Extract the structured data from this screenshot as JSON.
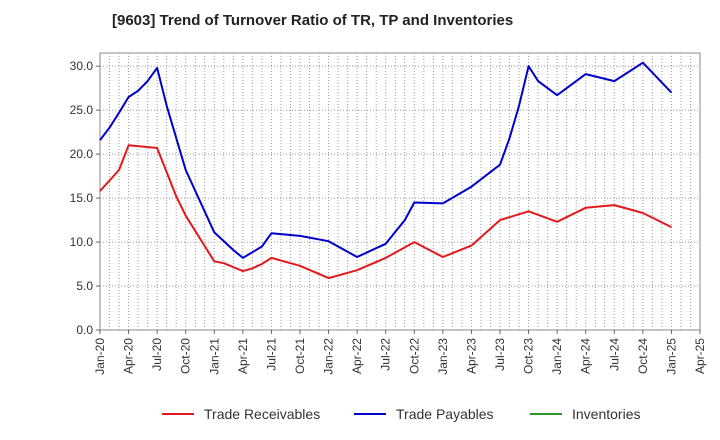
{
  "chart_data": {
    "type": "line",
    "title": "[9603]  Trend of Turnover Ratio of TR, TP and Inventories",
    "xlabel": "",
    "ylabel": "",
    "ylim": [
      0,
      31.5
    ],
    "yticks": [
      "0.0",
      "5.0",
      "10.0",
      "15.0",
      "20.0",
      "25.0",
      "30.0"
    ],
    "xticks": [
      "Jan-20",
      "Apr-20",
      "Jul-20",
      "Oct-20",
      "Jan-21",
      "Apr-21",
      "Jul-21",
      "Oct-21",
      "Jan-22",
      "Apr-22",
      "Jul-22",
      "Oct-22",
      "Jan-23",
      "Apr-23",
      "Jul-23",
      "Oct-23",
      "Jan-24",
      "Apr-24",
      "Jul-24",
      "Oct-24",
      "Jan-25",
      "Apr-25"
    ],
    "x_months": 63,
    "grid": true,
    "legend": "bottom",
    "series": [
      {
        "name": "Trade Receivables",
        "color": "#e31a1c",
        "points": [
          [
            0,
            15.8
          ],
          [
            2,
            18.2
          ],
          [
            3,
            21.0
          ],
          [
            6,
            20.7
          ],
          [
            8,
            15.2
          ],
          [
            9,
            13.0
          ],
          [
            12,
            7.8
          ],
          [
            13,
            7.6
          ],
          [
            15,
            6.7
          ],
          [
            16,
            7.0
          ],
          [
            17,
            7.5
          ],
          [
            18,
            8.2
          ],
          [
            21,
            7.3
          ],
          [
            24,
            5.9
          ],
          [
            27,
            6.8
          ],
          [
            30,
            8.2
          ],
          [
            33,
            10.0
          ],
          [
            36,
            8.3
          ],
          [
            39,
            9.6
          ],
          [
            42,
            12.5
          ],
          [
            45,
            13.5
          ],
          [
            48,
            12.3
          ],
          [
            51,
            13.9
          ],
          [
            54,
            14.2
          ],
          [
            57,
            13.3
          ],
          [
            60,
            11.7
          ]
        ]
      },
      {
        "name": "Trade Payables",
        "color": "#0000cc",
        "points": [
          [
            0,
            21.6
          ],
          [
            1,
            23.0
          ],
          [
            2,
            24.7
          ],
          [
            3,
            26.5
          ],
          [
            4,
            27.2
          ],
          [
            5,
            28.3
          ],
          [
            6,
            29.8
          ],
          [
            7,
            25.5
          ],
          [
            9,
            18.2
          ],
          [
            12,
            11.1
          ],
          [
            14,
            9.1
          ],
          [
            15,
            8.2
          ],
          [
            17,
            9.5
          ],
          [
            18,
            11.0
          ],
          [
            21,
            10.7
          ],
          [
            24,
            10.1
          ],
          [
            27,
            8.3
          ],
          [
            30,
            9.8
          ],
          [
            32,
            12.5
          ],
          [
            33,
            14.5
          ],
          [
            36,
            14.4
          ],
          [
            39,
            16.3
          ],
          [
            42,
            18.8
          ],
          [
            43,
            21.8
          ],
          [
            44,
            25.5
          ],
          [
            45,
            30.0
          ],
          [
            46,
            28.3
          ],
          [
            48,
            26.7
          ],
          [
            51,
            29.1
          ],
          [
            54,
            28.3
          ],
          [
            57,
            30.4
          ],
          [
            60,
            27.0
          ]
        ]
      },
      {
        "name": "Inventories",
        "color": "#2a9a2a",
        "points": []
      }
    ]
  }
}
